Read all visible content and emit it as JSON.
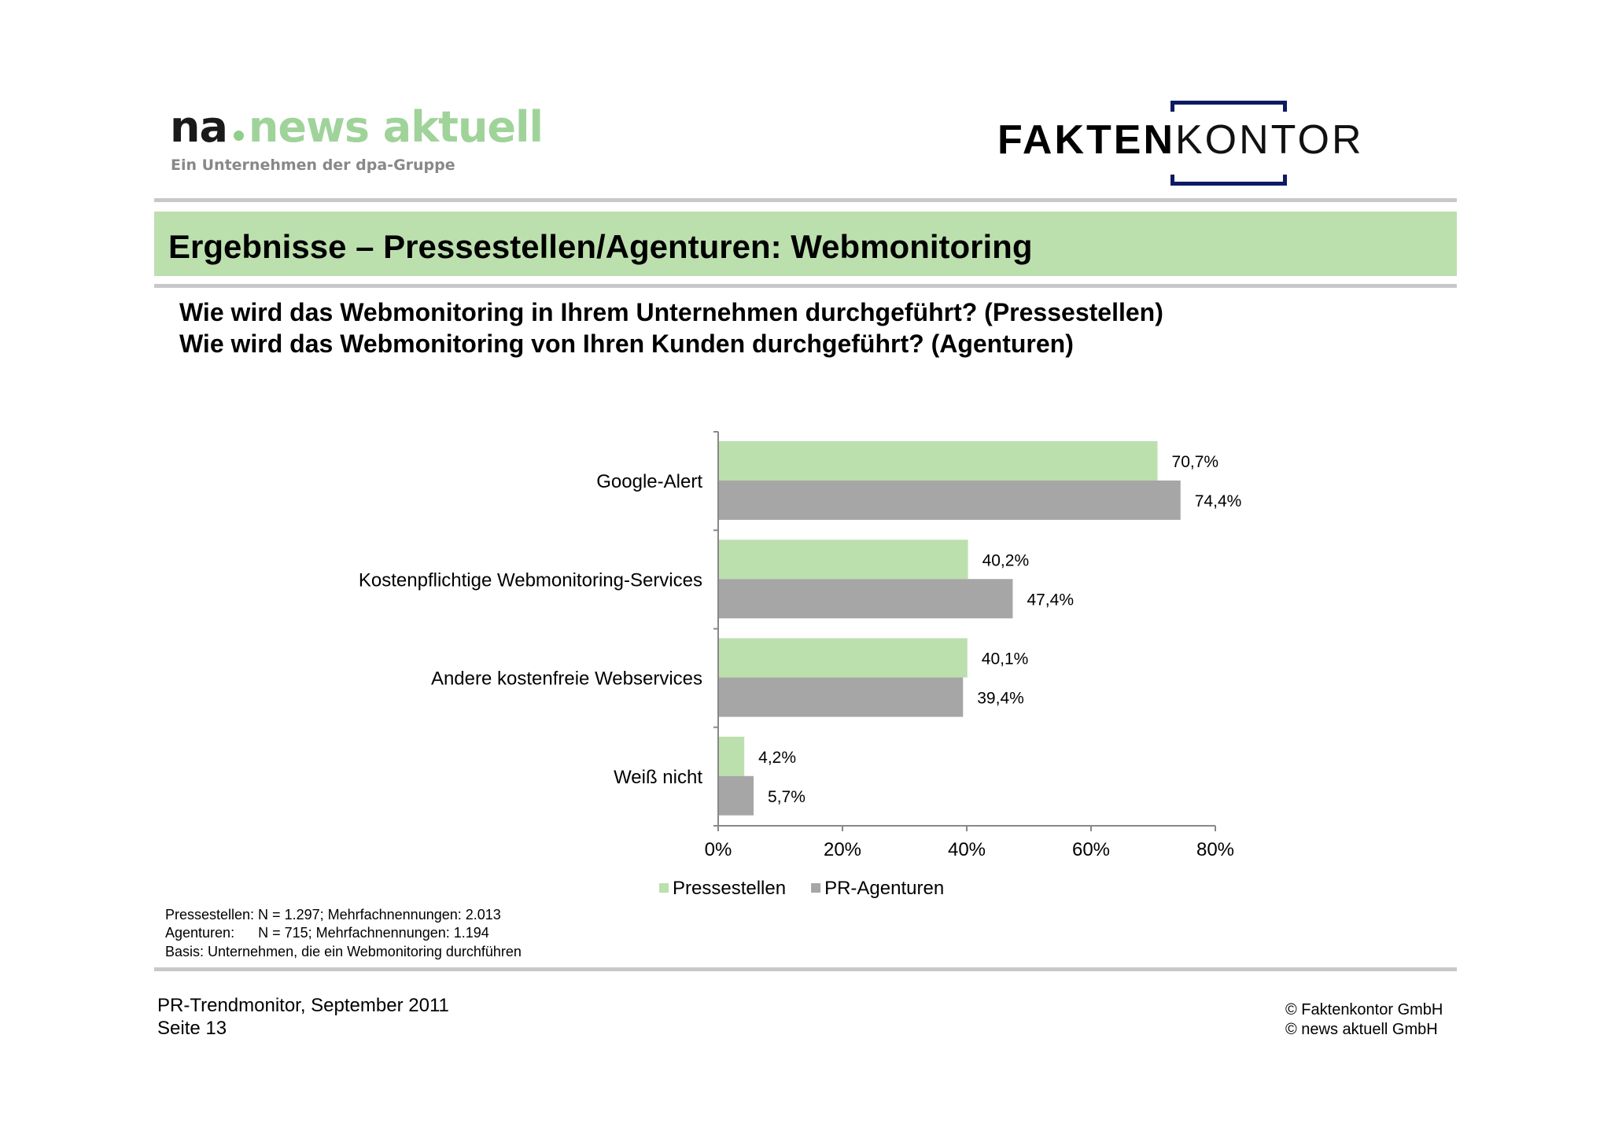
{
  "logos": {
    "na_prefix": "na",
    "na_name": "news aktuell",
    "na_tagline": "Ein Unternehmen der dpa-Gruppe",
    "fk_bold": "FAKTEN",
    "fk_light": "KONTOR",
    "fk_bracket_color": "#0e1a63"
  },
  "title": "Ergebnisse – Pressestellen/Agenturen: Webmonitoring",
  "questions": [
    "Wie wird das Webmonitoring in Ihrem Unternehmen durchgeführt? (Pressestellen)",
    "Wie wird das Webmonitoring von Ihren Kunden durchgeführt? (Agenturen)"
  ],
  "chart_data": {
    "type": "bar",
    "orientation": "horizontal",
    "categories": [
      "Google-Alert",
      "Kostenpflichtige Webmonitoring-Services",
      "Andere kostenfreie Webservices",
      "Weiß nicht"
    ],
    "series": [
      {
        "name": "Pressestellen",
        "color": "#bcdfae",
        "values": [
          70.7,
          40.2,
          40.1,
          4.2
        ],
        "labels": [
          "70,7%",
          "40,2%",
          "40,1%",
          "4,2%"
        ]
      },
      {
        "name": "PR-Agenturen",
        "color": "#a6a6a6",
        "values": [
          74.4,
          47.4,
          39.4,
          5.7
        ],
        "labels": [
          "74,4%",
          "47,4%",
          "39,4%",
          "5,7%"
        ]
      }
    ],
    "xlim": [
      0,
      80
    ],
    "xticks": [
      "0%",
      "20%",
      "40%",
      "60%",
      "80%"
    ],
    "legend_position": "bottom",
    "grid": false
  },
  "notes": [
    "Pressestellen: N = 1.297; Mehrfachnennungen: 2.013",
    "Agenturen:      N = 715; Mehrfachnennungen: 1.194",
    "Basis: Unternehmen, die ein Webmonitoring durchführen"
  ],
  "footer": {
    "left": [
      "PR-Trendmonitor, September 2011",
      "Seite 13"
    ],
    "right": [
      "© Faktenkontor GmbH",
      "© news aktuell GmbH"
    ]
  }
}
